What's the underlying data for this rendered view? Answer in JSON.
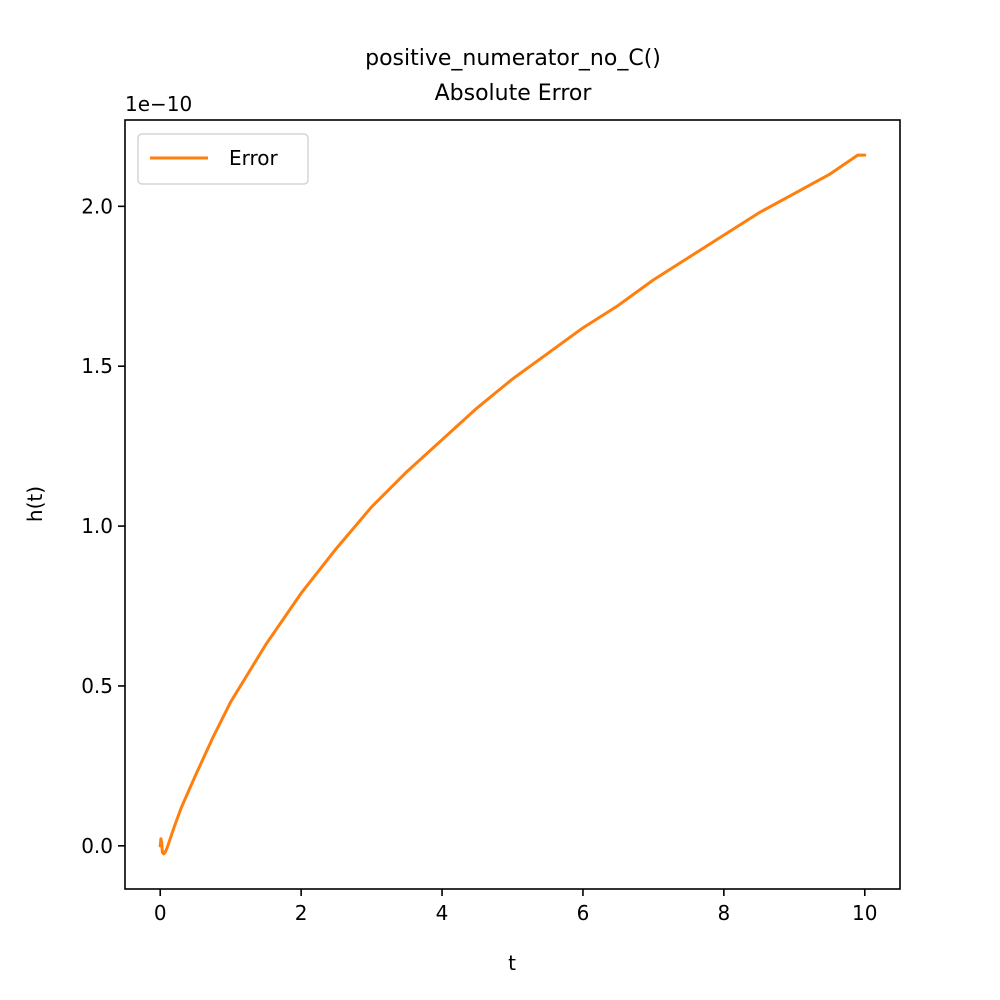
{
  "chart_data": {
    "type": "line",
    "title": "positive_numerator_no_C()\nAbsolute Error",
    "title_lines": [
      "positive_numerator_no_C()",
      "Absolute Error"
    ],
    "xlabel": "t",
    "ylabel": "h(t)",
    "offset_text": "1e−10",
    "xlim": [
      -0.5,
      10.5
    ],
    "ylim": [
      -1.35e-11,
      2.27e-10
    ],
    "xticks": [
      0,
      2,
      4,
      6,
      8,
      10
    ],
    "xtick_labels": [
      "0",
      "2",
      "4",
      "6",
      "8",
      "10"
    ],
    "yticks": [
      0.0,
      5e-11,
      1e-10,
      1.5e-10,
      2e-10
    ],
    "ytick_labels": [
      "0.0",
      "0.5",
      "1.0",
      "1.5",
      "2.0"
    ],
    "grid": false,
    "legend_position": "upper-left",
    "series": [
      {
        "name": "Error",
        "color": "#ff7f0e",
        "x": [
          0.0,
          0.01,
          0.02,
          0.03,
          0.05,
          0.07,
          0.1,
          0.2,
          0.3,
          0.5,
          0.75,
          1.0,
          1.5,
          2.0,
          2.5,
          3.0,
          3.5,
          4.0,
          4.5,
          5.0,
          5.5,
          6.0,
          6.5,
          7.0,
          7.5,
          8.0,
          8.5,
          9.0,
          9.5,
          9.9,
          10.0
        ],
        "y": [
          0.0,
          2.2e-12,
          1.2e-12,
          -2e-12,
          -2.5e-12,
          -2e-12,
          -5e-13,
          6e-12,
          1.2e-11,
          2.2e-11,
          3.4e-11,
          4.5e-11,
          6.3e-11,
          7.9e-11,
          9.3e-11,
          1.06e-10,
          1.17e-10,
          1.27e-10,
          1.37e-10,
          1.46e-10,
          1.54e-10,
          1.62e-10,
          1.69e-10,
          1.77e-10,
          1.84e-10,
          1.91e-10,
          1.98e-10,
          2.04e-10,
          2.1e-10,
          2.16e-10,
          2.16e-10
        ]
      }
    ]
  }
}
